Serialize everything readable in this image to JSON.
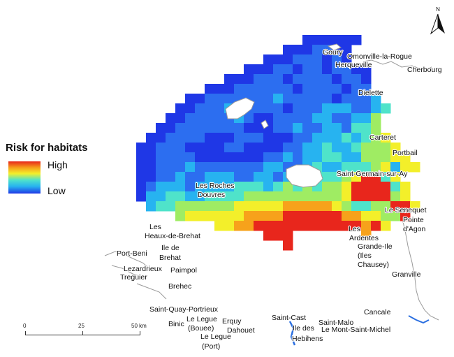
{
  "legend": {
    "title": "Risk for habitats",
    "high_label": "High",
    "low_label": "Low"
  },
  "scale": {
    "labels": [
      "0",
      "25",
      "50 km"
    ]
  },
  "north_arrow": {
    "label": "N"
  },
  "colors": {
    "ramp": [
      "#1f37e6",
      "#2c6ef0",
      "#27b3f0",
      "#4fe3ca",
      "#9fec63",
      "#f3ef2a",
      "#f7a21b",
      "#e8261c"
    ],
    "land_outline": "#9a9a9a",
    "island_fill": "#ffffff",
    "water_feature": "#2b6fe0"
  },
  "places": [
    "Goury",
    "Omonville-la-Rogue",
    "Herqueville",
    "Cherbourg",
    "Dielette",
    "Carteret",
    "Portbail",
    "Saint-Germain-sur-Ay",
    "Les Roches",
    "Douvres",
    "Le Senequet",
    "Pointe",
    "d'Agon",
    "Les",
    "Ardentes",
    "Grande-Ile",
    "(Iles",
    "Chausey)",
    "Granville",
    "Les",
    "Heaux-de-Brehat",
    "Ile de",
    "Brehat",
    "Port-Beni",
    "Lezardrieux",
    "Treguier",
    "Paimpol",
    "Brehec",
    "Saint-Quay-Portrieux",
    "Cancale",
    "Saint-Cast",
    "Saint-Malo",
    "Le Mont-Saint-Michel",
    "Ile des",
    "Hebihens",
    "Le Legue",
    "(Bouee)",
    "Erquy",
    "Dahouet",
    "Binic",
    "Le Legue",
    "(Port)"
  ],
  "risk_grid": {
    "note": "risk level per grid cell, 0 = low, 7 = high",
    "rows": [
      "...............................000000..........",
      ".............................0001100...........",
      "...........................000111010...........",
      ".........................0001101101100.........",
      ".......................000111011110110.........",
      ".....................00011111101111011.........",
      "...................00111111121111101112........",
      "..................0011121111101112221123.......",
      ".................0011111210011112211224........",
      "................00111111100011211221334........",
      "...............0011110001110001122232345.......",
      "..............001110000110000112232234445......",
      "..............0011110000000112122332244455.....",
      "..............00111211111112211232233345255....",
      "..............001121122211221232333457735......",
      "..............0122212222333234343445777735.....",
      "..............0223322333344444444445777745.....",
      "...............2334444445555566666543344775....",
      "..................455555566667777776655447.....",
      "......................556677777777777675.......",
      "...........................777.......6.........",
      ".............................7................."
    ]
  }
}
